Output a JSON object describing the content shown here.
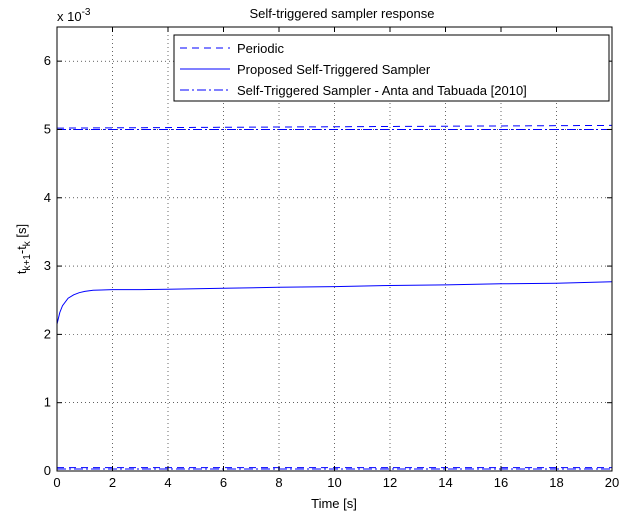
{
  "chart_data": {
    "type": "line",
    "title": "Self-triggered sampler response",
    "xlabel": "Time [s]",
    "ylabel": "t_{k+1}-t_k [s]",
    "ylabel_parts": {
      "t1": "t",
      "s1": "k+1",
      "mid": "-t",
      "s2": "k",
      "unit": " [s]"
    },
    "y_multiplier": {
      "base": "x 10",
      "exponent": "-3"
    },
    "xlim": [
      0,
      20
    ],
    "ylim": [
      0,
      6.5
    ],
    "xticks": [
      0,
      2,
      4,
      6,
      8,
      10,
      12,
      14,
      16,
      18,
      20
    ],
    "yticks": [
      0,
      1,
      2,
      3,
      4,
      5,
      6
    ],
    "grid": true,
    "legend_position": "top-right",
    "series": [
      {
        "name": "Periodic",
        "style": "dashed",
        "color": "#0000ff",
        "segments": [
          {
            "x": [
              0,
              20
            ],
            "y": [
              5.02,
              5.06
            ]
          },
          {
            "x": [
              0,
              20
            ],
            "y": [
              0.05,
              0.05
            ]
          }
        ]
      },
      {
        "name": "Proposed Self-Triggered Sampler",
        "style": "solid",
        "color": "#0000ff",
        "segments": [
          {
            "x": [
              0,
              0.1,
              0.2,
              0.4,
              0.6,
              0.8,
              1.0,
              1.3,
              1.6,
              2.0,
              3,
              4,
              6,
              8,
              10,
              12,
              14,
              16,
              18,
              20
            ],
            "y": [
              2.15,
              2.32,
              2.42,
              2.53,
              2.58,
              2.61,
              2.63,
              2.645,
              2.65,
              2.655,
              2.655,
              2.66,
              2.675,
              2.69,
              2.7,
              2.715,
              2.725,
              2.74,
              2.75,
              2.77
            ]
          }
        ]
      },
      {
        "name": "Self-Triggered Sampler - Anta and Tabuada [2010]",
        "style": "dashdot",
        "color": "#0000ff",
        "segments": [
          {
            "x": [
              0,
              20
            ],
            "y": [
              5.0,
              5.0
            ]
          },
          {
            "x": [
              0,
              20
            ],
            "y": [
              0.03,
              0.03
            ]
          }
        ]
      }
    ]
  }
}
